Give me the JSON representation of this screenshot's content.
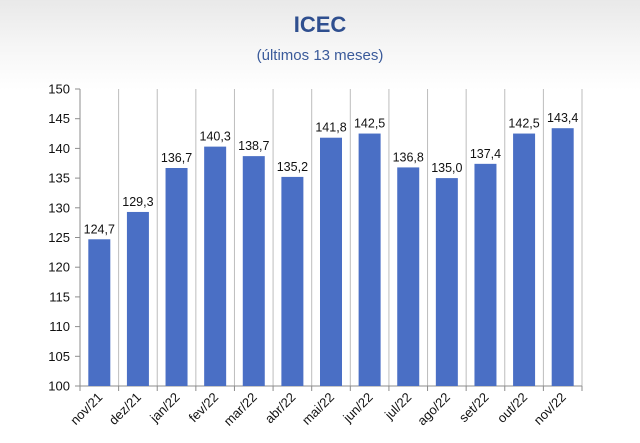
{
  "chart_data": {
    "type": "bar",
    "title": "ICEC",
    "subtitle": "(últimos 13 meses)",
    "xlabel": "",
    "ylabel": "",
    "categories": [
      "nov/21",
      "dez/21",
      "jan/22",
      "fev/22",
      "mar/22",
      "abr/22",
      "mai/22",
      "jun/22",
      "jul/22",
      "ago/22",
      "set/22",
      "out/22",
      "nov/22"
    ],
    "values": [
      124.7,
      129.3,
      136.7,
      140.3,
      138.7,
      135.2,
      141.8,
      142.5,
      136.8,
      135.0,
      137.4,
      142.5,
      143.4
    ],
    "value_labels": [
      "124,7",
      "129,3",
      "136,7",
      "140,3",
      "138,7",
      "135,2",
      "141,8",
      "142,5",
      "136,8",
      "135,0",
      "137,4",
      "142,5",
      "143,4"
    ],
    "ylim": [
      100,
      150
    ],
    "yticks": [
      "100",
      "105",
      "110",
      "115",
      "120",
      "125",
      "130",
      "135",
      "140",
      "145",
      "150"
    ],
    "grid": "vertical category separators",
    "legend": "none",
    "colors": {
      "bar": "#4a6fc5",
      "grid": "#bdbdbd",
      "axis": "#8c8c8c"
    }
  }
}
